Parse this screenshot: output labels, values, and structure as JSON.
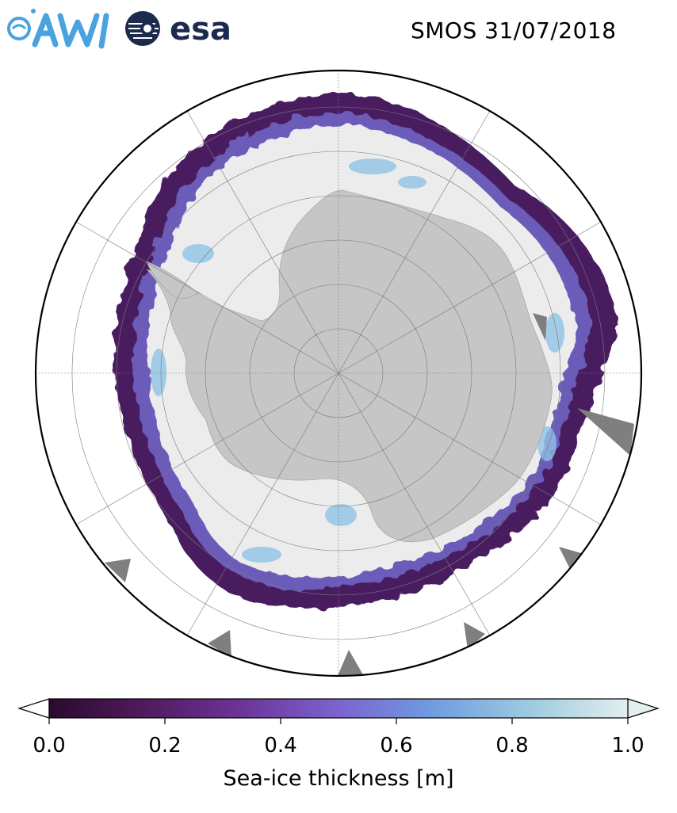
{
  "header": {
    "title": "SMOS 31/07/2018",
    "logos": [
      {
        "name": "AWI",
        "color": "#4aa3e0"
      },
      {
        "name": "esa",
        "color": "#1c2a4d"
      }
    ]
  },
  "map": {
    "projection": "south-polar-stereographic",
    "colors": {
      "land": "#c6c6c6",
      "thick_ice": "#ececec",
      "no_data": "#7f7f7f",
      "ocean": "#ffffff",
      "grid": "#7a7a7a"
    }
  },
  "colorbar": {
    "label": "Sea-ice thickness [m]",
    "ticks": [
      "0.0",
      "0.2",
      "0.4",
      "0.6",
      "0.8",
      "1.0"
    ],
    "tick_values": [
      0.0,
      0.2,
      0.4,
      0.6,
      0.8,
      1.0
    ],
    "range": [
      0.0,
      1.0
    ],
    "colormap": [
      "#2b0a2e",
      "#4f1a5c",
      "#6c3497",
      "#7b63cf",
      "#6f9be0",
      "#9ccbe0",
      "#e3eeee"
    ],
    "extend": "both"
  }
}
